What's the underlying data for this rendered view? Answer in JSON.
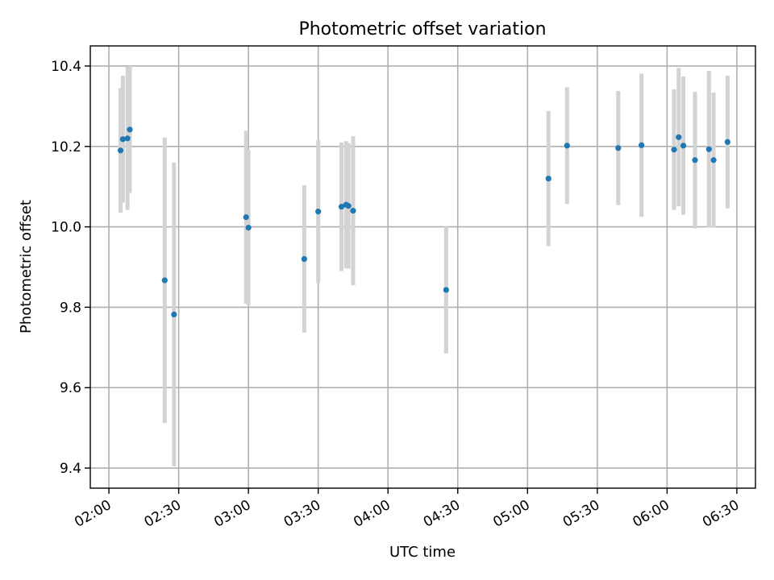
{
  "chart_data": {
    "type": "scatter",
    "title": "Photometric offset variation",
    "xlabel": "UTC time",
    "ylabel": "Photometric offset",
    "x_axis_type": "time",
    "xlim": [
      "01:52",
      "06:38"
    ],
    "ylim": [
      9.35,
      10.45
    ],
    "x_ticks": [
      "02:00",
      "02:30",
      "03:00",
      "03:30",
      "04:00",
      "04:30",
      "05:00",
      "05:30",
      "06:00",
      "06:30"
    ],
    "y_ticks": [
      9.4,
      9.6,
      9.8,
      10.0,
      10.2,
      10.4
    ],
    "y_tick_labels": [
      "9.4",
      "9.6",
      "9.8",
      "10.0",
      "10.2",
      "10.4"
    ],
    "grid": true,
    "marker_color": "#1f77b4",
    "errorbar_color": "#d3d3d3",
    "series": [
      {
        "points": [
          {
            "x": "02:05",
            "y": 10.19,
            "err": 0.155
          },
          {
            "x": "02:06",
            "y": 10.218,
            "err": 0.158
          },
          {
            "x": "02:08",
            "y": 10.22,
            "err": 0.178
          },
          {
            "x": "02:09",
            "y": 10.242,
            "err": 0.158
          },
          {
            "x": "02:24",
            "y": 9.867,
            "err": 0.355
          },
          {
            "x": "02:28",
            "y": 9.782,
            "err": 0.378
          },
          {
            "x": "02:59",
            "y": 10.024,
            "err": 0.215
          },
          {
            "x": "03:00",
            "y": 9.998,
            "err": 0.193
          },
          {
            "x": "03:24",
            "y": 9.92,
            "err": 0.183
          },
          {
            "x": "03:30",
            "y": 10.038,
            "err": 0.178
          },
          {
            "x": "03:40",
            "y": 10.05,
            "err": 0.16
          },
          {
            "x": "03:42",
            "y": 10.055,
            "err": 0.158
          },
          {
            "x": "03:43",
            "y": 10.052,
            "err": 0.156
          },
          {
            "x": "03:45",
            "y": 10.04,
            "err": 0.185
          },
          {
            "x": "04:25",
            "y": 9.843,
            "err": 0.158
          },
          {
            "x": "05:09",
            "y": 10.12,
            "err": 0.168
          },
          {
            "x": "05:17",
            "y": 10.202,
            "err": 0.145
          },
          {
            "x": "05:39",
            "y": 10.196,
            "err": 0.142
          },
          {
            "x": "05:49",
            "y": 10.203,
            "err": 0.178
          },
          {
            "x": "06:03",
            "y": 10.192,
            "err": 0.15
          },
          {
            "x": "06:05",
            "y": 10.223,
            "err": 0.172
          },
          {
            "x": "06:07",
            "y": 10.202,
            "err": 0.172
          },
          {
            "x": "06:12",
            "y": 10.166,
            "err": 0.17
          },
          {
            "x": "06:18",
            "y": 10.193,
            "err": 0.195
          },
          {
            "x": "06:20",
            "y": 10.166,
            "err": 0.168
          },
          {
            "x": "06:26",
            "y": 10.211,
            "err": 0.165
          }
        ]
      }
    ]
  }
}
